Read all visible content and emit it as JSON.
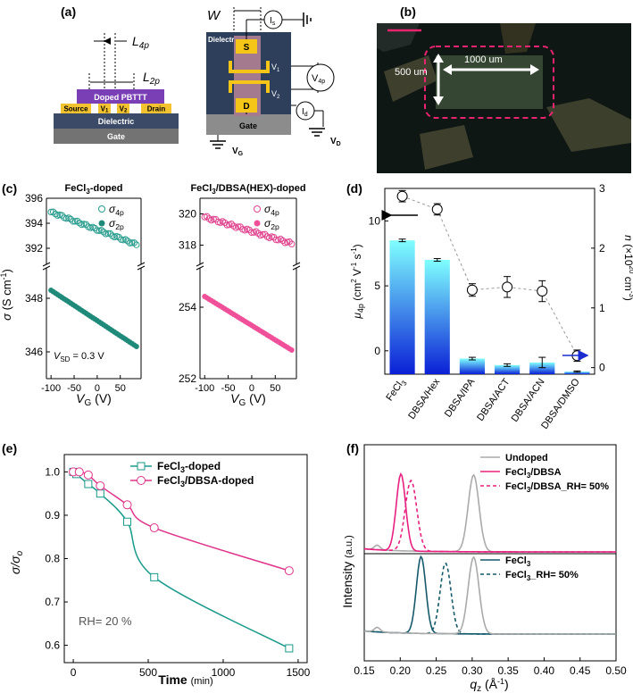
{
  "panel_labels": {
    "a": "(a)",
    "b": "(b)",
    "c": "(c)",
    "d": "(d)",
    "e": "(e)",
    "f": "(f)"
  },
  "device_a": {
    "L4p": "L",
    "L4p_sub": "4p",
    "L2p": "L",
    "L2p_sub": "2p",
    "film": "Doped PBTTT",
    "source": "Source",
    "v1": "V",
    "v1_sub": "1",
    "v2": "V",
    "v2_sub": "2",
    "drain": "Drain",
    "dielectric": "Dielectric",
    "gate": "Gate"
  },
  "circuit_a": {
    "W": "W",
    "dielectric": "Dielectric",
    "s": "S",
    "d": "D",
    "gate": "Gate",
    "Is": "I",
    "Is_sub": "s",
    "V1": "V",
    "V1_sub": "1",
    "V2": "V",
    "V2_sub": "2",
    "V4p": "V",
    "V4p_sub": "4p",
    "Id": "I",
    "Id_sub": "d",
    "VG": "V",
    "VG_sub": "G",
    "VD": "V",
    "VD_sub": "D"
  },
  "micrograph_b": {
    "width_label": "500 um",
    "length_label": "1000 um"
  },
  "chart_data": [
    {
      "type": "scatter",
      "panel": "c-left",
      "title": "FeCl3-doped",
      "title_main": "FeCl",
      "title_sub": "3",
      "title_rest": "-doped",
      "ylabel": "σ (S cm⁻¹)",
      "ylabel_main": "σ",
      "ylabel_unit": "(S cm",
      "ylabel_exp": "-1",
      "ylabel_close": ")",
      "xlabel_main": "V",
      "xlabel_sub": "G",
      "xlabel_unit": "(V)",
      "xlim": [
        -110,
        95
      ],
      "xticks": [
        "-100",
        "-50",
        "0",
        "50"
      ],
      "upper_ylim": [
        391,
        396
      ],
      "upper_yticks": [
        "392",
        "394",
        "396"
      ],
      "lower_ylim": [
        345,
        349
      ],
      "lower_yticks": [
        "346",
        "348"
      ],
      "annotation_main": "V",
      "annotation_sub": "SD",
      "annotation_rest": " = 0.3 V",
      "series": [
        {
          "name": "σ4p",
          "legend_main": "σ",
          "legend_sub": "4p",
          "marker": "open-circle",
          "color": "#2a9d8f",
          "x_range": [
            -100,
            85
          ],
          "y_range": [
            394.9,
            392.3
          ]
        },
        {
          "name": "σ2p",
          "legend_main": "σ",
          "legend_sub": "2p",
          "marker": "filled-circle",
          "color": "#1f8a7a",
          "x_range": [
            -100,
            85
          ],
          "y_range": [
            348.3,
            346.2
          ]
        }
      ]
    },
    {
      "type": "scatter",
      "panel": "c-right",
      "title": "FeCl3/DBSA(HEX)-doped",
      "title_main": "FeCl",
      "title_sub": "3",
      "title_rest": "/DBSA(HEX)-doped",
      "xlabel_main": "V",
      "xlabel_sub": "G",
      "xlabel_unit": "(V)",
      "xlim": [
        -110,
        95
      ],
      "xticks": [
        "-100",
        "-50",
        "0",
        "50"
      ],
      "upper_ylim": [
        317,
        321
      ],
      "upper_yticks": [
        "318",
        "320"
      ],
      "lower_ylim": [
        252,
        255
      ],
      "lower_yticks": [
        "252",
        "254"
      ],
      "series": [
        {
          "name": "σ4p",
          "legend_main": "σ",
          "legend_sub": "4p",
          "marker": "open-circle",
          "color": "#e0448f",
          "x_range": [
            -100,
            85
          ],
          "y_range": [
            319.8,
            318.1
          ]
        },
        {
          "name": "σ2p",
          "legend_main": "σ",
          "legend_sub": "2p",
          "marker": "filled-circle",
          "color": "#f0509a",
          "x_range": [
            -100,
            85
          ],
          "y_range": [
            254.3,
            252.8
          ]
        }
      ]
    },
    {
      "type": "bar",
      "panel": "d",
      "categories": [
        "FeCl3",
        "DBSA/Hex",
        "DBSA/IPA",
        "DBSA/ACT",
        "DBSA/ACN",
        "DBSA/DMSO"
      ],
      "category_labels": [
        {
          "main": "FeCl",
          "sub": "3"
        },
        {
          "main": "DBSA/Hex",
          "sub": ""
        },
        {
          "main": "DBSA/IPA",
          "sub": ""
        },
        {
          "main": "DBSA/ACT",
          "sub": ""
        },
        {
          "main": "DBSA/ACN",
          "sub": ""
        },
        {
          "main": "DBSA/DMSO",
          "sub": ""
        }
      ],
      "mobility_values": [
        8.5,
        7.0,
        -0.6,
        -1.1,
        -0.9,
        -1.6
      ],
      "mobility_errors": [
        0.1,
        0.1,
        0.1,
        0.1,
        0.4,
        0.05
      ],
      "density_values": [
        2.87,
        2.65,
        1.3,
        1.35,
        1.28,
        0.2
      ],
      "density_errors": [
        0.02,
        0.02,
        0.03,
        0.1,
        0.1,
        0.02
      ],
      "ylabel_main": "μ",
      "ylabel_sub": "4p",
      "ylabel_unit": "(cm",
      "ylabel_exp1": "2",
      "ylabel_mid": " V",
      "ylabel_exp2": "-1",
      "ylabel_s": " s",
      "ylabel_exp3": "-1",
      "ylabel_close": ")",
      "y2label_main": "n",
      "y2label_unit": " (×10",
      "y2label_exp": "20",
      "y2label_cm": " cm",
      "y2label_exp2": "-3",
      "y2label_close": ")",
      "ylim": [
        -1.8,
        12.5
      ],
      "yticks": [
        "0",
        "5",
        "10"
      ],
      "y2lim": [
        -0.11,
        3.0
      ],
      "y2ticks": [
        "0",
        "1",
        "2",
        "3"
      ],
      "bar_gradient": [
        "#7fffff",
        "#0a1fd6"
      ]
    },
    {
      "type": "line",
      "panel": "e",
      "xlabel": "Time",
      "xlabel_unit": "(min)",
      "ylabel_main": "σ/σ",
      "ylabel_sub": "o",
      "xlim": [
        -60,
        1560
      ],
      "xticks": [
        "0",
        "500",
        "1000",
        "1500"
      ],
      "ylim": [
        0.56,
        1.04
      ],
      "yticks": [
        "0.6",
        "0.7",
        "0.8",
        "0.9",
        "1.0"
      ],
      "annotation": "RH= 20 %",
      "series": [
        {
          "name": "FeCl3-doped",
          "legend_main": "FeCl",
          "legend_sub": "3",
          "legend_rest": "-doped",
          "marker": "open-square",
          "color": "#1a9a8a",
          "x": [
            0,
            20,
            100,
            180,
            360,
            540,
            1440
          ],
          "y": [
            1.0,
            0.995,
            0.972,
            0.95,
            0.885,
            0.757,
            0.593
          ]
        },
        {
          "name": "FeCl3/DBSA-doped",
          "legend_main": "FeCl",
          "legend_sub": "3",
          "legend_rest": "/DBSA-doped",
          "marker": "open-circle",
          "color": "#e0338a",
          "x": [
            0,
            40,
            100,
            180,
            360,
            540,
            1440
          ],
          "y": [
            1.0,
            1.0,
            0.993,
            0.968,
            0.924,
            0.871,
            0.772
          ]
        }
      ]
    },
    {
      "type": "line",
      "panel": "f",
      "xlabel_main": "q",
      "xlabel_sub": "z",
      "xlabel_unit": "(Å",
      "xlabel_exp": "-1",
      "xlabel_close": ")",
      "ylabel": "Intensity",
      "ylabel_unit": "(a.u.)",
      "xlim": [
        0.15,
        0.5
      ],
      "xticks": [
        "0.15",
        "0.20",
        "0.25",
        "0.30",
        "0.35",
        "0.40",
        "0.45",
        "0.50"
      ],
      "series": [
        {
          "name": "Undoped",
          "legend_main": "Undoped",
          "legend_sub": "",
          "legend_rest": "",
          "color": "#aaaaaa",
          "dash": "solid",
          "offset": 1,
          "peak": 0.302,
          "width": 0.0075,
          "height": 1.0
        },
        {
          "name": "FeCl3/DBSA",
          "legend_main": "FeCl",
          "legend_sub": "3",
          "legend_rest": "/DBSA",
          "color": "#e8207f",
          "dash": "solid",
          "offset": 1,
          "peak": 0.201,
          "width": 0.0065,
          "height": 1.0
        },
        {
          "name": "FeCl3/DBSA_RH= 50%",
          "legend_main": "FeCl",
          "legend_sub": "3",
          "legend_rest": "/DBSA_RH= 50%",
          "color": "#e8207f",
          "dash": "dashed",
          "offset": 1,
          "peak": 0.215,
          "width": 0.008,
          "height": 0.92
        },
        {
          "name": "FeCl3",
          "legend_main": "FeCl",
          "legend_sub": "3",
          "legend_rest": "",
          "color": "#15596a",
          "dash": "solid",
          "offset": 0,
          "peak": 0.229,
          "width": 0.0065,
          "height": 1.0
        },
        {
          "name": "FeCl3_RH= 50%",
          "legend_main": "FeCl",
          "legend_sub": "3",
          "legend_rest": "_RH= 50%",
          "color": "#15596a",
          "dash": "dashed",
          "offset": 0,
          "peak": 0.263,
          "width": 0.0075,
          "height": 0.92
        },
        {
          "name": "Undoped-lower",
          "legend_main": "",
          "legend_sub": "",
          "legend_rest": "",
          "color": "#aaaaaa",
          "dash": "solid",
          "offset": 0,
          "peak": 0.302,
          "width": 0.0075,
          "height": 1.0
        }
      ]
    }
  ]
}
